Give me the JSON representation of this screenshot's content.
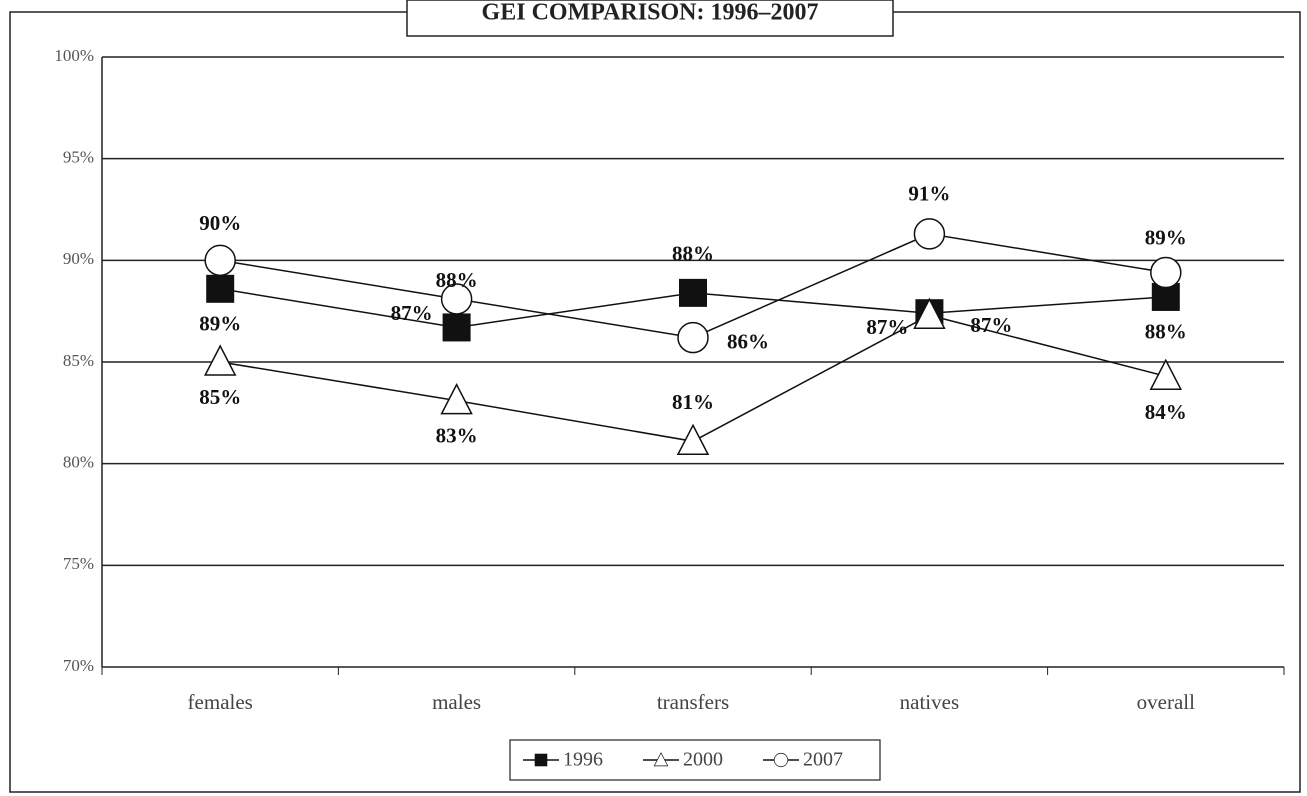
{
  "chart_data": {
    "type": "line",
    "title": "GEI COMPARISON: 1996–2007",
    "categories": [
      "females",
      "males",
      "transfers",
      "natives",
      "overall"
    ],
    "series": [
      {
        "name": "1996",
        "color": "#111111",
        "marker": "square",
        "values": [
          88.6,
          86.7,
          88.4,
          87.4,
          88.2
        ],
        "value_labels": [
          "89%",
          "87%",
          "88%",
          "87%",
          "88%"
        ]
      },
      {
        "name": "2000",
        "color": "#111111",
        "marker": "triangle",
        "values": [
          85.0,
          83.1,
          81.1,
          87.3,
          84.3
        ],
        "value_labels": [
          "85%",
          "83%",
          "81%",
          "87%",
          "84%"
        ]
      },
      {
        "name": "2007",
        "color": "#111111",
        "marker": "circle",
        "values": [
          90.0,
          88.1,
          86.2,
          91.3,
          89.4
        ],
        "value_labels": [
          "90%",
          "88%",
          "86%",
          "91%",
          "89%"
        ]
      }
    ],
    "ylim": [
      70,
      100
    ],
    "yticks": [
      {
        "value": 70,
        "label": "70%"
      },
      {
        "value": 75,
        "label": "75%"
      },
      {
        "value": 80,
        "label": "80%"
      },
      {
        "value": 85,
        "label": "85%"
      },
      {
        "value": 90,
        "label": "90%"
      },
      {
        "value": 95,
        "label": "95%"
      },
      {
        "value": 100,
        "label": "100%"
      }
    ],
    "grid": true
  }
}
